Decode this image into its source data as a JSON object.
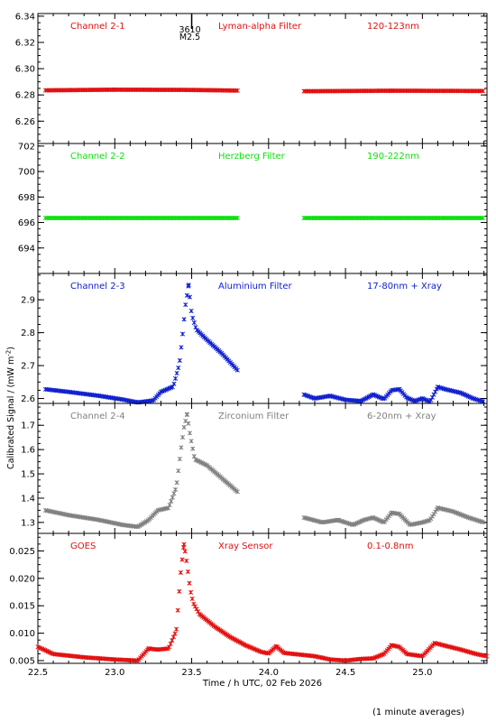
{
  "chart_data": [
    {
      "type": "scatter",
      "panel_label": "Channel 2-1",
      "filter": "Lyman-alpha Filter",
      "range": "120-123nm",
      "color": "#e21010",
      "ylim": [
        6.243,
        6.342
      ],
      "yticks": [
        6.26,
        6.28,
        6.3,
        6.32,
        6.34
      ],
      "ytick_labels": [
        "6.26",
        "6.28",
        "6.30",
        "6.32",
        "6.34"
      ],
      "segments": [
        {
          "x": [
            22.55,
            23.0,
            23.5,
            23.8
          ],
          "y": [
            6.2835,
            6.284,
            6.2838,
            6.2833
          ]
        },
        {
          "x": [
            24.23,
            24.8,
            25.4
          ],
          "y": [
            6.2828,
            6.2832,
            6.283
          ]
        }
      ],
      "annotation": {
        "x": 23.5,
        "lines": [
          "3610",
          "M2.5"
        ]
      }
    },
    {
      "type": "scatter",
      "panel_label": "Channel 2-2",
      "filter": "Herzberg Filter",
      "range": "190-222nm",
      "color": "#10e010",
      "ylim": [
        692.0,
        702.2
      ],
      "yticks": [
        694,
        696,
        698,
        700,
        702
      ],
      "ytick_labels": [
        "694",
        "696",
        "698",
        "700",
        "702"
      ],
      "segments": [
        {
          "x": [
            22.55,
            23.8
          ],
          "y": [
            696.35,
            696.35
          ]
        },
        {
          "x": [
            24.23,
            25.4
          ],
          "y": [
            696.35,
            696.35
          ]
        }
      ]
    },
    {
      "type": "scatter",
      "panel_label": "Channel 2-3",
      "filter": "Aluminium Filter",
      "range": "17-80nm + Xray",
      "color": "#1020d0",
      "ylim": [
        2.585,
        2.98
      ],
      "yticks": [
        2.6,
        2.7,
        2.8,
        2.9
      ],
      "ytick_labels": [
        "2.6",
        "2.7",
        "2.8",
        "2.9"
      ],
      "segments": [
        {
          "x": [
            22.55,
            22.7,
            22.9,
            23.05,
            23.15,
            23.25,
            23.3,
            23.38,
            23.42,
            23.44,
            23.46,
            23.48,
            23.5,
            23.53,
            23.6,
            23.7,
            23.8
          ],
          "y": [
            2.628,
            2.62,
            2.608,
            2.597,
            2.588,
            2.594,
            2.62,
            2.636,
            2.705,
            2.79,
            2.885,
            2.945,
            2.855,
            2.81,
            2.778,
            2.735,
            2.685
          ]
        },
        {
          "x": [
            24.23,
            24.3,
            24.4,
            24.5,
            24.6,
            24.68,
            24.75,
            24.8,
            24.85,
            24.9,
            24.95,
            25.0,
            25.05,
            25.1,
            25.15,
            25.25,
            25.33,
            25.4
          ],
          "y": [
            2.612,
            2.6,
            2.608,
            2.596,
            2.592,
            2.612,
            2.598,
            2.625,
            2.628,
            2.602,
            2.592,
            2.6,
            2.59,
            2.635,
            2.628,
            2.617,
            2.6,
            2.59
          ]
        }
      ]
    },
    {
      "type": "scatter",
      "panel_label": "Channel 2-4",
      "filter": "Zirconium Filter",
      "range": "6-20nm + Xray",
      "color": "#808080",
      "ylim": [
        1.255,
        1.79
      ],
      "yticks": [
        1.3,
        1.4,
        1.5,
        1.6,
        1.7
      ],
      "ytick_labels": [
        "1.3",
        "1.4",
        "1.5",
        "1.6",
        "1.7"
      ],
      "segments": [
        {
          "x": [
            22.55,
            22.7,
            22.9,
            23.05,
            23.15,
            23.22,
            23.28,
            23.35,
            23.4,
            23.43,
            23.45,
            23.47,
            23.49,
            23.52,
            23.6,
            23.7,
            23.8
          ],
          "y": [
            1.35,
            1.33,
            1.31,
            1.29,
            1.282,
            1.31,
            1.35,
            1.36,
            1.445,
            1.6,
            1.69,
            1.745,
            1.66,
            1.56,
            1.535,
            1.48,
            1.425
          ]
        },
        {
          "x": [
            24.23,
            24.35,
            24.45,
            24.55,
            24.62,
            24.68,
            24.75,
            24.8,
            24.85,
            24.92,
            25.0,
            25.05,
            25.1,
            25.2,
            25.3,
            25.4
          ],
          "y": [
            1.32,
            1.3,
            1.31,
            1.29,
            1.31,
            1.32,
            1.3,
            1.34,
            1.335,
            1.29,
            1.3,
            1.31,
            1.36,
            1.345,
            1.32,
            1.3
          ]
        }
      ]
    },
    {
      "type": "scatter",
      "panel_label": "GOES",
      "filter": "Xray Sensor",
      "range": "0.1-0.8nm",
      "color": "#e21010",
      "xlabel": "Time / h UTC, 02 Feb 2026",
      "xlim": [
        22.5,
        25.42
      ],
      "xticks": [
        22.5,
        23.0,
        23.5,
        24.0,
        24.5,
        25.0
      ],
      "xtick_labels": [
        "22.5",
        "23.0",
        "23.5",
        "24.0",
        "24.5",
        "25.0"
      ],
      "ylim": [
        0.0045,
        0.0282
      ],
      "yticks": [
        0.005,
        0.01,
        0.015,
        0.02,
        0.025
      ],
      "ytick_labels": [
        "0.005",
        "0.010",
        "0.015",
        "0.020",
        "0.025"
      ],
      "segments": [
        {
          "x": [
            22.5,
            22.6,
            22.8,
            23.0,
            23.15,
            23.22,
            23.28,
            23.35,
            23.4,
            23.43,
            23.45,
            23.47,
            23.49,
            23.51,
            23.55,
            23.65,
            23.75,
            23.85,
            23.95,
            24.0,
            24.05,
            24.1,
            24.2,
            24.3,
            24.4,
            24.5,
            24.6,
            24.68,
            24.75,
            24.8,
            24.85,
            24.9,
            25.0,
            25.08,
            25.15,
            25.25,
            25.35,
            25.42
          ],
          "y": [
            0.0075,
            0.0062,
            0.0056,
            0.0052,
            0.005,
            0.0072,
            0.007,
            0.0072,
            0.0105,
            0.0215,
            0.0262,
            0.0225,
            0.018,
            0.0155,
            0.0135,
            0.0112,
            0.0093,
            0.0078,
            0.0066,
            0.0063,
            0.0076,
            0.0064,
            0.0061,
            0.0058,
            0.0052,
            0.005,
            0.0053,
            0.0054,
            0.0062,
            0.0078,
            0.0075,
            0.0062,
            0.0058,
            0.0082,
            0.0077,
            0.007,
            0.0062,
            0.0058
          ]
        }
      ]
    }
  ],
  "ylabel": "Calibrated Signal / (mW m",
  "ylabel_exponent": "-2",
  "ylabel_close": ")",
  "footnote": "(1 minute averages)"
}
